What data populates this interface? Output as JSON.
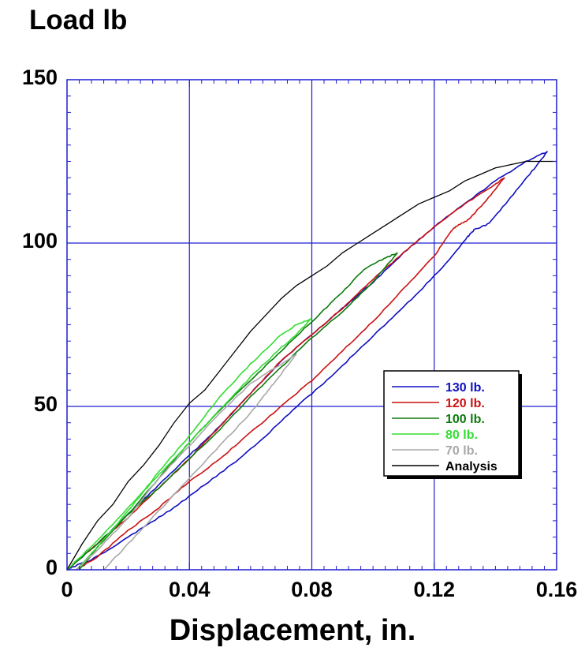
{
  "chart_data": {
    "type": "line",
    "ylabel": "Load lb",
    "xlabel": "Displacement, in.",
    "xlim": [
      0,
      0.16
    ],
    "ylim": [
      0,
      150
    ],
    "xticks": [
      "0",
      "0.04",
      "0.08",
      "0.12",
      "0.16"
    ],
    "yticks": [
      "0",
      "50",
      "100",
      "150"
    ],
    "xtick_values": [
      0,
      0.04,
      0.08,
      0.12,
      0.16
    ],
    "ytick_values": [
      0,
      50,
      100,
      150
    ],
    "grid": true,
    "legend_position": "lower-right",
    "series": [
      {
        "name": "130 lb.",
        "color": "#1010c0",
        "loading": [
          [
            0,
            0
          ],
          [
            0.01,
            8
          ],
          [
            0.02,
            17
          ],
          [
            0.03,
            26
          ],
          [
            0.04,
            35
          ],
          [
            0.05,
            44
          ],
          [
            0.06,
            54
          ],
          [
            0.07,
            64
          ],
          [
            0.08,
            72
          ],
          [
            0.09,
            80
          ],
          [
            0.1,
            88
          ],
          [
            0.11,
            97
          ],
          [
            0.12,
            105
          ],
          [
            0.13,
            112
          ],
          [
            0.14,
            119
          ],
          [
            0.15,
            125
          ],
          [
            0.157,
            128
          ]
        ],
        "unloading": [
          [
            0.157,
            128
          ],
          [
            0.152,
            122
          ],
          [
            0.145,
            114
          ],
          [
            0.138,
            106
          ],
          [
            0.133,
            104
          ],
          [
            0.131,
            102
          ],
          [
            0.125,
            95
          ],
          [
            0.115,
            85
          ],
          [
            0.105,
            76
          ],
          [
            0.095,
            67
          ],
          [
            0.085,
            58
          ],
          [
            0.075,
            50
          ],
          [
            0.065,
            41
          ],
          [
            0.055,
            33
          ],
          [
            0.045,
            26
          ],
          [
            0.035,
            19
          ],
          [
            0.025,
            13
          ],
          [
            0.015,
            7
          ],
          [
            0.008,
            3
          ],
          [
            0.002,
            1
          ],
          [
            0,
            0
          ]
        ]
      },
      {
        "name": "120 lb.",
        "color": "#cc1111",
        "loading": [
          [
            0,
            0
          ],
          [
            0.01,
            8
          ],
          [
            0.02,
            16
          ],
          [
            0.03,
            25
          ],
          [
            0.04,
            34
          ],
          [
            0.05,
            44
          ],
          [
            0.06,
            54
          ],
          [
            0.07,
            64
          ],
          [
            0.08,
            72
          ],
          [
            0.09,
            80
          ],
          [
            0.1,
            89
          ],
          [
            0.11,
            97
          ],
          [
            0.12,
            105
          ],
          [
            0.13,
            112
          ],
          [
            0.14,
            118
          ],
          [
            0.143,
            120
          ]
        ],
        "unloading": [
          [
            0.143,
            120
          ],
          [
            0.137,
            113
          ],
          [
            0.131,
            107
          ],
          [
            0.127,
            105
          ],
          [
            0.125,
            103
          ],
          [
            0.12,
            96
          ],
          [
            0.11,
            86
          ],
          [
            0.1,
            76
          ],
          [
            0.09,
            67
          ],
          [
            0.08,
            58
          ],
          [
            0.07,
            50
          ],
          [
            0.06,
            42
          ],
          [
            0.05,
            34
          ],
          [
            0.04,
            27
          ],
          [
            0.03,
            19
          ],
          [
            0.02,
            12
          ],
          [
            0.01,
            4
          ],
          [
            0.003,
            0
          ]
        ]
      },
      {
        "name": "100 lb.",
        "color": "#0d7a0d",
        "loading": [
          [
            0,
            0
          ],
          [
            0.01,
            8
          ],
          [
            0.02,
            17
          ],
          [
            0.03,
            25
          ],
          [
            0.04,
            34
          ],
          [
            0.05,
            43
          ],
          [
            0.06,
            53
          ],
          [
            0.07,
            62
          ],
          [
            0.08,
            71
          ],
          [
            0.09,
            79
          ],
          [
            0.1,
            88
          ],
          [
            0.108,
            97
          ]
        ],
        "unloading": [
          [
            0.108,
            97
          ],
          [
            0.103,
            95
          ],
          [
            0.097,
            92
          ],
          [
            0.09,
            85
          ],
          [
            0.08,
            76
          ],
          [
            0.07,
            67
          ],
          [
            0.06,
            58
          ],
          [
            0.05,
            49
          ],
          [
            0.04,
            39
          ],
          [
            0.03,
            28
          ],
          [
            0.02,
            17
          ],
          [
            0.01,
            7
          ],
          [
            0.004,
            0
          ]
        ]
      },
      {
        "name": "80 lb.",
        "color": "#33dd33",
        "loading": [
          [
            0,
            0
          ],
          [
            0.01,
            9
          ],
          [
            0.02,
            19
          ],
          [
            0.03,
            29
          ],
          [
            0.04,
            39
          ],
          [
            0.05,
            49
          ],
          [
            0.06,
            59
          ],
          [
            0.07,
            68
          ],
          [
            0.075,
            72
          ],
          [
            0.08,
            77
          ]
        ],
        "unloading": [
          [
            0.08,
            77
          ],
          [
            0.075,
            75
          ],
          [
            0.07,
            72
          ],
          [
            0.06,
            63
          ],
          [
            0.05,
            53
          ],
          [
            0.04,
            41
          ],
          [
            0.03,
            30
          ],
          [
            0.02,
            18
          ],
          [
            0.01,
            7
          ],
          [
            0.003,
            0
          ]
        ]
      },
      {
        "name": "70 lb.",
        "color": "#a8a8a8",
        "loading": [
          [
            0.012,
            0
          ],
          [
            0.02,
            8
          ],
          [
            0.03,
            18
          ],
          [
            0.04,
            28
          ],
          [
            0.05,
            38
          ],
          [
            0.06,
            48
          ],
          [
            0.065,
            54
          ],
          [
            0.07,
            60
          ],
          [
            0.075,
            66
          ]
        ],
        "unloading": [
          [
            0.075,
            66
          ],
          [
            0.07,
            63
          ],
          [
            0.06,
            57
          ],
          [
            0.05,
            48
          ],
          [
            0.04,
            38
          ],
          [
            0.03,
            28
          ],
          [
            0.02,
            16
          ],
          [
            0.01,
            6
          ],
          [
            0.003,
            0
          ]
        ]
      },
      {
        "name": "Analysis",
        "color": "#000000",
        "points": [
          [
            0,
            0
          ],
          [
            0.005,
            8
          ],
          [
            0.01,
            15
          ],
          [
            0.015,
            20
          ],
          [
            0.02,
            27
          ],
          [
            0.025,
            32
          ],
          [
            0.03,
            38
          ],
          [
            0.035,
            45
          ],
          [
            0.04,
            51
          ],
          [
            0.045,
            55
          ],
          [
            0.05,
            61
          ],
          [
            0.055,
            67
          ],
          [
            0.06,
            73
          ],
          [
            0.065,
            78
          ],
          [
            0.07,
            83
          ],
          [
            0.075,
            87
          ],
          [
            0.08,
            90
          ],
          [
            0.085,
            93
          ],
          [
            0.09,
            97
          ],
          [
            0.095,
            100
          ],
          [
            0.1,
            103
          ],
          [
            0.105,
            106
          ],
          [
            0.11,
            109
          ],
          [
            0.115,
            112
          ],
          [
            0.12,
            114
          ],
          [
            0.125,
            116
          ],
          [
            0.13,
            119
          ],
          [
            0.135,
            121
          ],
          [
            0.14,
            123
          ],
          [
            0.145,
            124
          ],
          [
            0.15,
            125
          ],
          [
            0.16,
            125
          ]
        ]
      }
    ]
  }
}
